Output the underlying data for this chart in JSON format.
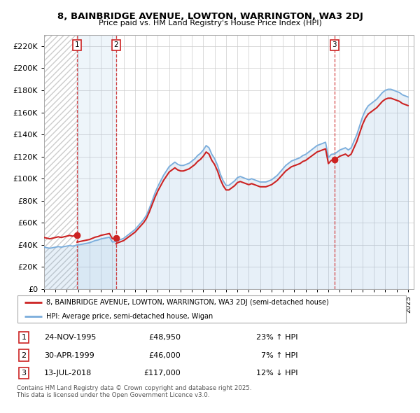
{
  "title": "8, BAINBRIDGE AVENUE, LOWTON, WARRINGTON, WA3 2DJ",
  "subtitle": "Price paid vs. HM Land Registry's House Price Index (HPI)",
  "ylabel_ticks": [
    "£0",
    "£20K",
    "£40K",
    "£60K",
    "£80K",
    "£100K",
    "£120K",
    "£140K",
    "£160K",
    "£180K",
    "£200K",
    "£220K"
  ],
  "ytick_values": [
    0,
    20000,
    40000,
    60000,
    80000,
    100000,
    120000,
    140000,
    160000,
    180000,
    200000,
    220000
  ],
  "ylim": [
    0,
    230000
  ],
  "xlim_start": 1993.0,
  "xlim_end": 2025.5,
  "hpi_color": "#7aaddc",
  "price_color": "#cc2222",
  "transactions": [
    {
      "num": 1,
      "date": "24-NOV-1995",
      "price": 48950,
      "year": 1995.9
    },
    {
      "num": 2,
      "date": "30-APR-1999",
      "price": 46000,
      "year": 1999.33
    },
    {
      "num": 3,
      "date": "13-JUL-2018",
      "price": 117000,
      "year": 2018.54
    }
  ],
  "legend_property": "8, BAINBRIDGE AVENUE, LOWTON, WARRINGTON, WA3 2DJ (semi-detached house)",
  "legend_hpi": "HPI: Average price, semi-detached house, Wigan",
  "footer": "Contains HM Land Registry data © Crown copyright and database right 2025.\nThis data is licensed under the Open Government Licence v3.0.",
  "hpi_data_x": [
    1993.0,
    1993.25,
    1993.5,
    1993.75,
    1994.0,
    1994.25,
    1994.5,
    1994.75,
    1995.0,
    1995.25,
    1995.5,
    1995.75,
    1995.9,
    1996.0,
    1996.25,
    1996.5,
    1996.75,
    1997.0,
    1997.25,
    1997.5,
    1997.75,
    1998.0,
    1998.25,
    1998.5,
    1998.75,
    1999.0,
    1999.25,
    1999.33,
    1999.5,
    1999.75,
    2000.0,
    2000.25,
    2000.5,
    2000.75,
    2001.0,
    2001.25,
    2001.5,
    2001.75,
    2002.0,
    2002.25,
    2002.5,
    2002.75,
    2003.0,
    2003.25,
    2003.5,
    2003.75,
    2004.0,
    2004.25,
    2004.5,
    2004.75,
    2005.0,
    2005.25,
    2005.5,
    2005.75,
    2006.0,
    2006.25,
    2006.5,
    2006.75,
    2007.0,
    2007.25,
    2007.5,
    2007.75,
    2008.0,
    2008.25,
    2008.5,
    2008.75,
    2009.0,
    2009.25,
    2009.5,
    2009.75,
    2010.0,
    2010.25,
    2010.5,
    2010.75,
    2011.0,
    2011.25,
    2011.5,
    2011.75,
    2012.0,
    2012.25,
    2012.5,
    2012.75,
    2013.0,
    2013.25,
    2013.5,
    2013.75,
    2014.0,
    2014.25,
    2014.5,
    2014.75,
    2015.0,
    2015.25,
    2015.5,
    2015.75,
    2016.0,
    2016.25,
    2016.5,
    2016.75,
    2017.0,
    2017.25,
    2017.5,
    2017.75,
    2018.0,
    2018.25,
    2018.54,
    2018.75,
    2019.0,
    2019.25,
    2019.5,
    2019.75,
    2020.0,
    2020.25,
    2020.5,
    2020.75,
    2021.0,
    2021.25,
    2021.5,
    2021.75,
    2022.0,
    2022.25,
    2022.5,
    2022.75,
    2023.0,
    2023.25,
    2023.5,
    2023.75,
    2024.0,
    2024.25,
    2024.5,
    2024.75,
    2025.0
  ],
  "hpi_data_y": [
    38000,
    37500,
    37000,
    37500,
    38000,
    38500,
    38000,
    38500,
    39000,
    39500,
    39000,
    39500,
    39800,
    40000,
    40500,
    41000,
    41500,
    42000,
    43000,
    44000,
    44500,
    45500,
    46000,
    46500,
    47000,
    42700,
    43000,
    43000,
    44000,
    45000,
    46000,
    48000,
    50000,
    52000,
    54000,
    57000,
    60000,
    63000,
    67000,
    73000,
    80000,
    87000,
    93000,
    98000,
    103000,
    107000,
    111000,
    113000,
    115000,
    113000,
    112000,
    112000,
    113000,
    114000,
    116000,
    118000,
    121000,
    123000,
    126000,
    130000,
    128000,
    122000,
    118000,
    112000,
    104000,
    98000,
    94000,
    94000,
    96000,
    98000,
    101000,
    102000,
    101000,
    100000,
    99000,
    100000,
    99000,
    98000,
    97000,
    97000,
    97000,
    98000,
    99000,
    101000,
    103000,
    106000,
    109000,
    112000,
    114000,
    116000,
    117000,
    118000,
    119000,
    121000,
    122000,
    124000,
    126000,
    128000,
    130000,
    131000,
    132000,
    133000,
    119000,
    122000,
    122500,
    124000,
    126000,
    127000,
    128000,
    126000,
    128000,
    134000,
    140000,
    148000,
    156000,
    162000,
    166000,
    168000,
    170000,
    172000,
    175000,
    178000,
    180000,
    181000,
    181000,
    180000,
    179000,
    178000,
    176000,
    175000,
    174000
  ],
  "background_color": "#ffffff",
  "grid_color": "#cccccc",
  "hatch_end_year": 1995.9,
  "shade_end_year": 1999.33
}
